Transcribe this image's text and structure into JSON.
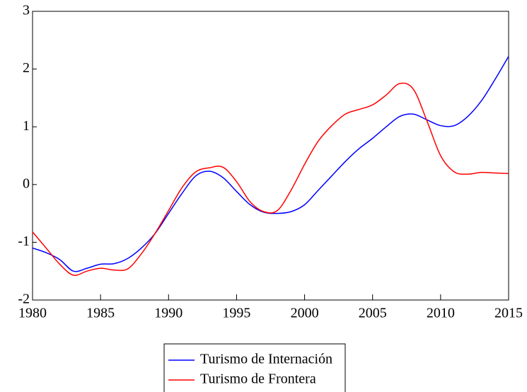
{
  "chart_data": {
    "type": "line",
    "x": [
      1980,
      1981,
      1982,
      1983,
      1984,
      1985,
      1986,
      1987,
      1988,
      1989,
      1990,
      1991,
      1992,
      1993,
      1994,
      1995,
      1996,
      1997,
      1998,
      1999,
      2000,
      2001,
      2002,
      2003,
      2004,
      2005,
      2006,
      2007,
      2008,
      2009,
      2010,
      2011,
      2012,
      2013,
      2014,
      2015
    ],
    "series": [
      {
        "name": "Turismo de Internación",
        "color": "#0000ff",
        "values": [
          -1.1,
          -1.18,
          -1.3,
          -1.5,
          -1.45,
          -1.38,
          -1.37,
          -1.28,
          -1.1,
          -0.85,
          -0.5,
          -0.15,
          0.15,
          0.23,
          0.12,
          -0.12,
          -0.35,
          -0.48,
          -0.5,
          -0.47,
          -0.35,
          -0.1,
          0.15,
          0.4,
          0.62,
          0.8,
          1.0,
          1.18,
          1.22,
          1.12,
          1.02,
          1.02,
          1.18,
          1.45,
          1.82,
          2.22
        ]
      },
      {
        "name": "Turismo de Frontera",
        "color": "#ff0000",
        "values": [
          -0.82,
          -1.1,
          -1.38,
          -1.57,
          -1.5,
          -1.45,
          -1.48,
          -1.46,
          -1.2,
          -0.85,
          -0.45,
          -0.05,
          0.22,
          0.29,
          0.3,
          0.05,
          -0.3,
          -0.47,
          -0.45,
          -0.1,
          0.35,
          0.75,
          1.02,
          1.22,
          1.3,
          1.38,
          1.55,
          1.75,
          1.65,
          1.1,
          0.5,
          0.22,
          0.18,
          0.21,
          0.2,
          0.19
        ]
      }
    ],
    "xlim": [
      1980,
      2015
    ],
    "xticks": [
      1980,
      1985,
      1990,
      1995,
      2000,
      2005,
      2010,
      2015
    ],
    "ylim": [
      -2,
      3
    ],
    "yticks": [
      -2,
      -1,
      0,
      1,
      2,
      3
    ],
    "grid": false
  }
}
